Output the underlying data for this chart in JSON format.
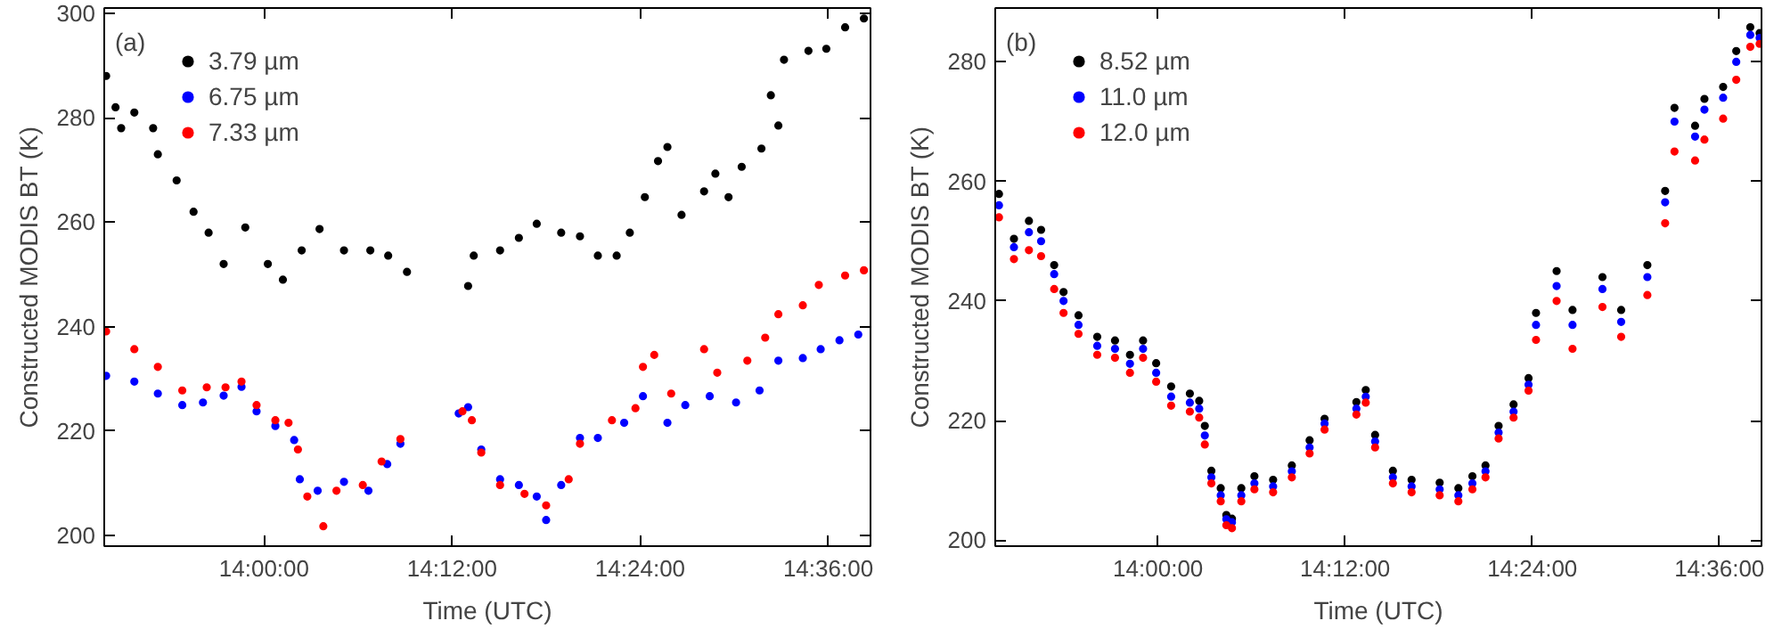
{
  "chart_data": [
    {
      "type": "scatter",
      "ylabel": "Constructed MODIS BT (K)",
      "xlabel": "Time (UTC)",
      "annotations": [
        "(a)"
      ],
      "marker": "circle",
      "legend": "top left",
      "grid": false,
      "xlim": [
        13.83,
        14.645
      ],
      "ylim": [
        198,
        301
      ],
      "xticks": [
        {
          "value": 14.0,
          "label": "14:00:00"
        },
        {
          "value": 14.2,
          "label": "14:12:00"
        },
        {
          "value": 14.4,
          "label": "14:24:00"
        },
        {
          "value": 14.6,
          "label": "14:36:00"
        }
      ],
      "yticks": [
        200,
        220,
        240,
        260,
        280,
        300
      ],
      "series": [
        {
          "name": "3.79 µm",
          "color": "#000000",
          "x": [
            13.832,
            13.842,
            13.848,
            13.862,
            13.882,
            13.887,
            13.907,
            13.925,
            13.941,
            13.957,
            13.98,
            14.004,
            14.02,
            14.04,
            14.059,
            14.085,
            14.113,
            14.132,
            14.152,
            14.217,
            14.223,
            14.251,
            14.271,
            14.29,
            14.316,
            14.336,
            14.355,
            14.375,
            14.389,
            14.405,
            14.419,
            14.429,
            14.444,
            14.468,
            14.48,
            14.494,
            14.508,
            14.529,
            14.539,
            14.547,
            14.553,
            14.579,
            14.598,
            14.618,
            14.638
          ],
          "values": [
            288,
            282,
            278,
            281,
            278,
            273,
            268,
            262,
            258,
            252,
            259,
            252,
            249,
            254.6,
            258.7,
            254.6,
            254.6,
            253.6,
            250.5,
            247.8,
            253.6,
            254.6,
            257,
            259.7,
            258,
            257.3,
            253.6,
            253.6,
            258,
            264.8,
            271.7,
            274.4,
            261.4,
            265.9,
            269.3,
            264.8,
            270.6,
            274.1,
            284.3,
            278.5,
            291.1,
            292.8,
            293.2,
            297.3,
            299
          ]
        },
        {
          "name": "6.75 µm",
          "color": "#0000ff",
          "x": [
            13.832,
            13.862,
            13.887,
            13.913,
            13.935,
            13.957,
            13.976,
            13.992,
            14.012,
            14.032,
            14.038,
            14.057,
            14.085,
            14.111,
            14.131,
            14.145,
            14.207,
            14.217,
            14.231,
            14.251,
            14.271,
            14.29,
            14.3,
            14.316,
            14.336,
            14.355,
            14.383,
            14.403,
            14.429,
            14.448,
            14.474,
            14.502,
            14.527,
            14.547,
            14.573,
            14.592,
            14.612,
            14.632
          ],
          "values": [
            230.6,
            229.5,
            227.2,
            225,
            225.5,
            226.8,
            228.5,
            223.8,
            221,
            218.3,
            210.8,
            208.6,
            210.3,
            208.6,
            213.7,
            217.6,
            223.4,
            224.6,
            216.5,
            210.8,
            209.7,
            207.5,
            203,
            209.7,
            218.7,
            218.7,
            221.6,
            226.7,
            221.6,
            225,
            226.7,
            225.5,
            227.8,
            233.5,
            234,
            235.7,
            237.4,
            238.5
          ]
        },
        {
          "name": "7.33 µm",
          "color": "#ff0000",
          "x": [
            13.832,
            13.862,
            13.887,
            13.913,
            13.939,
            13.959,
            13.976,
            13.992,
            14.012,
            14.026,
            14.036,
            14.046,
            14.063,
            14.077,
            14.105,
            14.125,
            14.145,
            14.211,
            14.221,
            14.231,
            14.251,
            14.277,
            14.3,
            14.324,
            14.336,
            14.37,
            14.395,
            14.403,
            14.415,
            14.433,
            14.468,
            14.482,
            14.514,
            14.533,
            14.547,
            14.573,
            14.59,
            14.618,
            14.638
          ],
          "values": [
            239.1,
            235.7,
            232.3,
            227.8,
            228.4,
            228.4,
            229.5,
            225,
            222.1,
            221.6,
            216.5,
            207.5,
            201.8,
            208.6,
            209.7,
            214.2,
            218.5,
            223.8,
            222.1,
            215.9,
            209.7,
            208,
            205.8,
            210.8,
            217.6,
            222.1,
            224.4,
            232.3,
            234.6,
            227.2,
            235.7,
            231.2,
            233.5,
            237.9,
            242.4,
            244.1,
            248,
            249.8,
            250.8
          ]
        }
      ]
    },
    {
      "type": "scatter",
      "ylabel": "Constructed MODIS BT (K)",
      "xlabel": "Time (UTC)",
      "annotations": [
        "(b)"
      ],
      "marker": "circle",
      "legend": "top left",
      "grid": false,
      "xlim": [
        13.826,
        14.645
      ],
      "ylim": [
        199,
        289
      ],
      "xticks": [
        {
          "value": 14.0,
          "label": "14:00:00"
        },
        {
          "value": 14.2,
          "label": "14:12:00"
        },
        {
          "value": 14.4,
          "label": "14:24:00"
        },
        {
          "value": 14.6,
          "label": "14:36:00"
        }
      ],
      "yticks": [
        200,
        220,
        240,
        260,
        280
      ],
      "x": [
        13.83,
        13.846,
        13.862,
        13.875,
        13.889,
        13.899,
        13.915,
        13.935,
        13.954,
        13.97,
        13.984,
        13.998,
        14.014,
        14.034,
        14.044,
        14.05,
        14.057,
        14.067,
        14.073,
        14.079,
        14.089,
        14.103,
        14.123,
        14.143,
        14.162,
        14.178,
        14.212,
        14.222,
        14.232,
        14.251,
        14.271,
        14.301,
        14.321,
        14.336,
        14.35,
        14.364,
        14.38,
        14.396,
        14.404,
        14.426,
        14.443,
        14.475,
        14.495,
        14.523,
        14.542,
        14.552,
        14.574,
        14.584,
        14.604,
        14.618,
        14.633,
        14.643
      ],
      "series": [
        {
          "name": "8.52 µm",
          "color": "#000000",
          "values": [
            257.9,
            250.4,
            253.4,
            251.9,
            246,
            241.5,
            237.6,
            234,
            233.4,
            231,
            233.4,
            229.6,
            225.7,
            224.5,
            223.3,
            219.1,
            211.6,
            208.7,
            204.2,
            203.6,
            208.7,
            210.7,
            210.1,
            212.5,
            216.7,
            220.3,
            223.1,
            225.1,
            217.6,
            211.6,
            210.1,
            209.6,
            208.7,
            210.7,
            212.5,
            219.1,
            222.7,
            227.1,
            238,
            245,
            238.5,
            244,
            238.5,
            246,
            258.4,
            272.3,
            269.3,
            273.8,
            275.8,
            281.8,
            285.8,
            284.8
          ]
        },
        {
          "name": "11.0 µm",
          "color": "#0000ff",
          "values": [
            256,
            249,
            251.5,
            250,
            244.5,
            240,
            236,
            232.5,
            232,
            229.5,
            232,
            228,
            224,
            223,
            222,
            217.5,
            210.5,
            207.5,
            203.5,
            203,
            207.5,
            209.5,
            209,
            211.5,
            215.5,
            219.5,
            222,
            224,
            216.5,
            210.5,
            209,
            208.5,
            207.5,
            209.5,
            211.5,
            218,
            221.5,
            226,
            236,
            242.5,
            236,
            242,
            236.5,
            244,
            256.5,
            270,
            267.5,
            272,
            274,
            280,
            284.5,
            284
          ]
        },
        {
          "name": "12.0 µm",
          "color": "#ff0000",
          "values": [
            254,
            247,
            248.5,
            247.5,
            242,
            238,
            234.5,
            231,
            230.5,
            228,
            230.5,
            226.5,
            222.5,
            221.5,
            220.5,
            216,
            209.5,
            206.5,
            202.5,
            202,
            206.5,
            208.5,
            208,
            210.5,
            214.5,
            218.5,
            221,
            223,
            215.5,
            209.5,
            208,
            207.5,
            206.5,
            208.5,
            210.5,
            217,
            220.5,
            225,
            233.5,
            240,
            232,
            239,
            234,
            241,
            253,
            265,
            263.5,
            267,
            270.5,
            277,
            282.5,
            283
          ]
        }
      ]
    }
  ]
}
